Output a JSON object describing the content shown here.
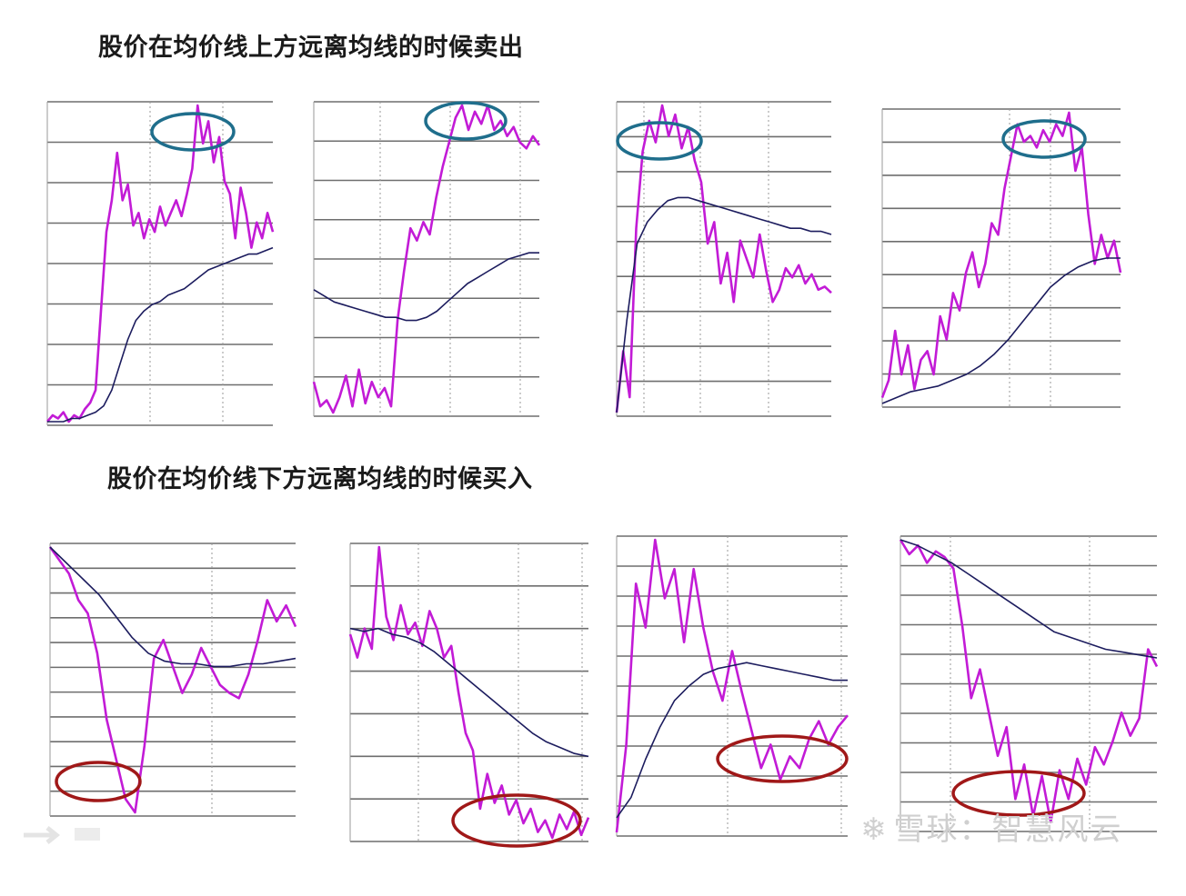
{
  "titles": {
    "top": "股价在均价线上方远离均线的时候卖出",
    "bottom": "股价在均价线下方远离均线的时候买入"
  },
  "watermark": "雪球：智慧风云",
  "colors": {
    "price": "#c21bd6",
    "average": "#1c1c5e",
    "grid": "#8a8a8a",
    "sell_circle": "#1f6e8c",
    "buy_circle": "#a01818"
  },
  "chart_data": [
    {
      "type": "line",
      "row": "top",
      "circle": "sell",
      "series": [
        {
          "values": [
            0.0,
            0.02,
            0.01,
            0.03,
            0.0,
            0.02,
            0.01,
            0.04,
            0.06,
            0.1,
            0.35,
            0.6,
            0.7,
            0.85,
            0.7,
            0.75,
            0.62,
            0.66,
            0.58,
            0.64,
            0.6,
            0.68,
            0.62,
            0.66,
            0.7,
            0.65,
            0.72,
            0.8,
            1.0,
            0.88,
            0.95,
            0.82,
            0.9,
            0.76,
            0.72,
            0.58,
            0.74,
            0.66,
            0.55,
            0.63,
            0.58,
            0.66,
            0.6
          ]
        },
        {
          "values": [
            0.0,
            0.0,
            0.0,
            0.01,
            0.01,
            0.02,
            0.03,
            0.05,
            0.1,
            0.18,
            0.26,
            0.32,
            0.35,
            0.37,
            0.38,
            0.4,
            0.41,
            0.42,
            0.44,
            0.46,
            0.48,
            0.49,
            0.5,
            0.51,
            0.52,
            0.53,
            0.53,
            0.54,
            0.55
          ]
        }
      ]
    },
    {
      "type": "line",
      "row": "top",
      "circle": "sell",
      "series": [
        {
          "values": [
            0.1,
            0.02,
            0.04,
            0.0,
            0.05,
            0.12,
            0.02,
            0.14,
            0.03,
            0.1,
            0.05,
            0.08,
            0.02,
            0.3,
            0.46,
            0.6,
            0.56,
            0.62,
            0.58,
            0.7,
            0.8,
            0.88,
            0.96,
            1.0,
            0.92,
            0.98,
            0.94,
            1.0,
            0.92,
            0.95,
            0.9,
            0.93,
            0.88,
            0.86,
            0.9,
            0.87
          ]
        },
        {
          "values": [
            0.4,
            0.38,
            0.36,
            0.35,
            0.34,
            0.33,
            0.32,
            0.31,
            0.31,
            0.3,
            0.3,
            0.31,
            0.33,
            0.36,
            0.39,
            0.42,
            0.44,
            0.46,
            0.48,
            0.5,
            0.51,
            0.52,
            0.52
          ]
        }
      ]
    },
    {
      "type": "line",
      "row": "top",
      "circle": "sell",
      "series": [
        {
          "values": [
            0.0,
            0.2,
            0.05,
            0.6,
            0.85,
            0.95,
            0.88,
            1.0,
            0.9,
            0.97,
            0.86,
            0.93,
            0.82,
            0.75,
            0.55,
            0.62,
            0.42,
            0.52,
            0.36,
            0.56,
            0.5,
            0.44,
            0.58,
            0.46,
            0.36,
            0.4,
            0.47,
            0.44,
            0.48,
            0.42,
            0.45,
            0.4,
            0.41,
            0.39
          ]
        },
        {
          "values": [
            0.0,
            0.3,
            0.55,
            0.62,
            0.66,
            0.69,
            0.7,
            0.7,
            0.69,
            0.68,
            0.67,
            0.66,
            0.65,
            0.64,
            0.63,
            0.62,
            0.61,
            0.6,
            0.6,
            0.59,
            0.59,
            0.58
          ]
        }
      ]
    },
    {
      "type": "line",
      "row": "top",
      "circle": "sell",
      "series": [
        {
          "values": [
            0.02,
            0.08,
            0.25,
            0.1,
            0.2,
            0.05,
            0.15,
            0.18,
            0.1,
            0.3,
            0.22,
            0.38,
            0.32,
            0.45,
            0.52,
            0.4,
            0.48,
            0.62,
            0.58,
            0.74,
            0.85,
            0.96,
            0.9,
            0.92,
            0.88,
            0.94,
            0.9,
            0.96,
            0.92,
            1.0,
            0.8,
            0.88,
            0.65,
            0.48,
            0.58,
            0.5,
            0.56,
            0.45
          ]
        },
        {
          "values": [
            0.0,
            0.02,
            0.04,
            0.05,
            0.06,
            0.08,
            0.1,
            0.13,
            0.17,
            0.22,
            0.28,
            0.34,
            0.4,
            0.44,
            0.47,
            0.49,
            0.5,
            0.5
          ]
        }
      ]
    },
    {
      "type": "line",
      "row": "bottom",
      "circle": "buy",
      "series": [
        {
          "values": [
            1.0,
            0.95,
            0.9,
            0.8,
            0.75,
            0.6,
            0.35,
            0.2,
            0.05,
            0.0,
            0.25,
            0.58,
            0.65,
            0.55,
            0.45,
            0.52,
            0.62,
            0.55,
            0.48,
            0.45,
            0.43,
            0.52,
            0.65,
            0.8,
            0.72,
            0.78,
            0.7
          ]
        },
        {
          "values": [
            1.0,
            0.94,
            0.88,
            0.82,
            0.74,
            0.66,
            0.6,
            0.57,
            0.56,
            0.56,
            0.55,
            0.55,
            0.56,
            0.56,
            0.57,
            0.58
          ]
        }
      ]
    },
    {
      "type": "line",
      "row": "bottom",
      "circle": "buy",
      "series": [
        {
          "values": [
            0.7,
            0.62,
            0.72,
            0.65,
            1.0,
            0.76,
            0.68,
            0.8,
            0.7,
            0.74,
            0.66,
            0.78,
            0.72,
            0.62,
            0.66,
            0.5,
            0.36,
            0.3,
            0.1,
            0.22,
            0.12,
            0.18,
            0.08,
            0.13,
            0.05,
            0.1,
            0.02,
            0.06,
            0.0,
            0.08,
            0.03,
            0.09,
            0.01,
            0.07
          ]
        },
        {
          "values": [
            0.72,
            0.71,
            0.72,
            0.7,
            0.69,
            0.67,
            0.64,
            0.6,
            0.56,
            0.52,
            0.48,
            0.44,
            0.4,
            0.36,
            0.33,
            0.31,
            0.29,
            0.28
          ]
        }
      ]
    },
    {
      "type": "line",
      "row": "bottom",
      "circle": "buy",
      "series": [
        {
          "values": [
            0.0,
            0.3,
            0.85,
            0.7,
            1.0,
            0.8,
            0.9,
            0.65,
            0.9,
            0.7,
            0.55,
            0.45,
            0.62,
            0.48,
            0.35,
            0.22,
            0.3,
            0.18,
            0.26,
            0.22,
            0.32,
            0.38,
            0.3,
            0.36,
            0.4
          ]
        },
        {
          "values": [
            0.05,
            0.12,
            0.25,
            0.36,
            0.45,
            0.5,
            0.54,
            0.56,
            0.57,
            0.58,
            0.57,
            0.56,
            0.55,
            0.54,
            0.53,
            0.52,
            0.52
          ]
        }
      ]
    },
    {
      "type": "line",
      "row": "bottom",
      "circle": "buy",
      "series": [
        {
          "values": [
            1.0,
            0.95,
            0.98,
            0.92,
            0.96,
            0.94,
            0.9,
            0.7,
            0.45,
            0.55,
            0.4,
            0.25,
            0.35,
            0.1,
            0.22,
            0.04,
            0.18,
            0.02,
            0.2,
            0.1,
            0.24,
            0.15,
            0.28,
            0.22,
            0.3,
            0.4,
            0.32,
            0.38,
            0.62,
            0.56
          ]
        },
        {
          "values": [
            1.0,
            0.98,
            0.95,
            0.92,
            0.88,
            0.84,
            0.8,
            0.76,
            0.72,
            0.68,
            0.66,
            0.64,
            0.62,
            0.61,
            0.6,
            0.59
          ]
        }
      ]
    }
  ]
}
